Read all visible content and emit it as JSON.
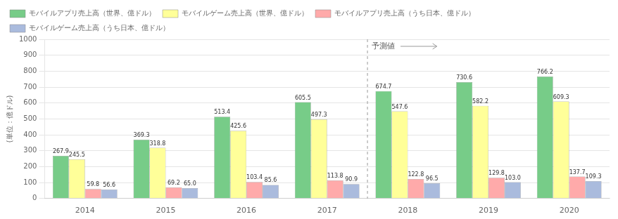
{
  "chart_data": {
    "type": "bar",
    "categories": [
      "2014",
      "2015",
      "2016",
      "2017",
      "2018",
      "2019",
      "2020"
    ],
    "series": [
      {
        "name": "モバイルアプリ売上高（世界、億ドル）",
        "color": "#77cc88",
        "values": [
          267.9,
          369.3,
          513.4,
          605.5,
          674.7,
          730.6,
          766.2
        ],
        "value_labels": [
          "267.9",
          "369.3",
          "513.4",
          "605.5",
          "674.7",
          "730.6",
          "766.2"
        ]
      },
      {
        "name": "モバイルゲーム売上高（世界、億ドル）",
        "color": "#ffff99",
        "values": [
          245.5,
          318.8,
          425.6,
          497.3,
          547.6,
          582.2,
          609.3
        ],
        "value_labels": [
          "245.5",
          "318.8",
          "425.6",
          "497.3",
          "547.6",
          "582.2",
          "609.3"
        ]
      },
      {
        "name": "モバイルアプリ売上高（うち日本、億ドル）",
        "color": "#ffaaaa",
        "values": [
          59.8,
          69.2,
          103.4,
          113.8,
          122.8,
          129.8,
          137.7
        ],
        "value_labels": [
          "59.8",
          "69.2",
          "103.4",
          "113.8",
          "122.8",
          "129.8",
          "137.7"
        ]
      },
      {
        "name": "モバイルゲーム売上高（うち日本、億ドル）",
        "color": "#aabbdd",
        "values": [
          56.6,
          65.0,
          85.6,
          90.9,
          96.5,
          103.0,
          109.3
        ],
        "value_labels": [
          "56.6",
          "65.0",
          "85.6",
          "90.9",
          "96.5",
          "103.0",
          "109.3"
        ]
      }
    ],
    "ylabel": "(単位：億ドル)",
    "ylim": [
      0,
      1000
    ],
    "yticks": [
      0,
      100,
      200,
      300,
      400,
      500,
      600,
      700,
      800,
      900,
      1000
    ],
    "grid": true,
    "legend": "upper left",
    "data_labels": true,
    "annotations": [
      {
        "text": "予測値",
        "x": "2018"
      }
    ]
  }
}
